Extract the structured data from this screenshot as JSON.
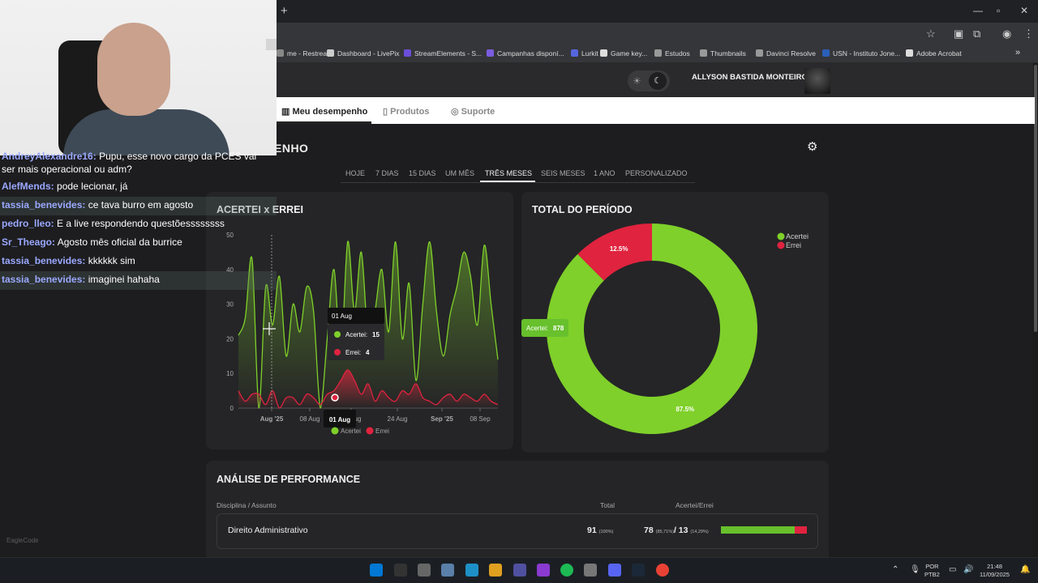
{
  "browser": {
    "new_tab": "+",
    "window_controls": [
      "—",
      "▫",
      "✕"
    ],
    "bookmarks": [
      {
        "label": "me - Restream",
        "color": "#888888"
      },
      {
        "label": "Dashboard - LivePix",
        "color": "#cccccc"
      },
      {
        "label": "StreamElements - S...",
        "color": "#6b4fd8"
      },
      {
        "label": "Campanhas disponí...",
        "color": "#7b5ce0"
      },
      {
        "label": "Lurkit",
        "color": "#5566dd"
      },
      {
        "label": "Game key...",
        "color": "#dddddd"
      },
      {
        "label": "Estudos",
        "color": "#999999"
      },
      {
        "label": "Thumbnails",
        "color": "#999999"
      },
      {
        "label": "Davinci Resolve",
        "color": "#999999"
      },
      {
        "label": "USN - Instituto Jone...",
        "color": "#2b5fb8"
      },
      {
        "label": "Adobe Acrobat",
        "color": "#dddddd"
      }
    ],
    "more_bookmarks": "»"
  },
  "header": {
    "sun_icon": "☀",
    "moon_icon": "☾",
    "username": "ALLYSON BASTIDA MONTEIRO"
  },
  "nav": {
    "items": [
      {
        "label": "Meu desempenho",
        "icon": "▥"
      },
      {
        "label": "Produtos",
        "icon": "▯"
      },
      {
        "label": "Suporte",
        "icon": "◎"
      }
    ]
  },
  "page": {
    "title": "ENHO",
    "gear_icon": "⚙",
    "filters": [
      "HOJE",
      "7 DIAS",
      "15 DIAS",
      "UM MÊS",
      "TRÊS MESES",
      "SEIS MESES",
      "1 ANO",
      "PERSONALIZADO"
    ],
    "active_filter": "TRÊS MESES"
  },
  "chat": [
    {
      "user": "AndreyAlexandre16:",
      "msg": "Pupu, esse novo cargo da PCES vai"
    },
    {
      "user": "",
      "msg": "ser mais operacional ou adm?"
    },
    {
      "user": "AlefMends:",
      "msg": "pode lecionar, já"
    },
    {
      "user": "tassia_benevides:",
      "msg": "ce tava burro em agosto"
    },
    {
      "user": "pedro_lleo:",
      "msg": "E a live respondendo questõessssssss"
    },
    {
      "user": "Sr_Theago:",
      "msg": "Agosto mês oficial da burrice"
    },
    {
      "user": "tassia_benevides:",
      "msg": "kkkkkk sim"
    },
    {
      "user": "tassia_benevides:",
      "msg": "imaginei hahaha"
    }
  ],
  "chart_data": [
    {
      "type": "area",
      "title": "ACERTEI x ERREI",
      "ylim": [
        0,
        50
      ],
      "yticks": [
        0,
        10,
        20,
        30,
        40,
        50
      ],
      "xticks": [
        "Aug '25",
        "08 Aug",
        "16 Aug",
        "24 Aug",
        "Sep '25",
        "08 Sep"
      ],
      "series": [
        {
          "name": "Acertei",
          "color": "#7fd02a",
          "values": [
            21,
            26,
            43,
            0,
            35,
            24,
            38,
            15,
            30,
            22,
            35,
            28,
            0,
            20,
            40,
            15,
            48,
            28,
            45,
            20,
            28,
            40,
            22,
            48,
            20,
            36,
            8,
            30,
            48,
            28,
            15,
            27,
            35,
            45,
            38,
            24,
            47,
            30,
            14
          ]
        },
        {
          "name": "Errei",
          "color": "#e0233f",
          "values": [
            5,
            2,
            4,
            4,
            1,
            5,
            0,
            3,
            3,
            1,
            4,
            3,
            1,
            4,
            5,
            8,
            11,
            8,
            4,
            7,
            2,
            5,
            3,
            2,
            5,
            4,
            7,
            3,
            2,
            1,
            3,
            4,
            2,
            4,
            3,
            2,
            4,
            2,
            1
          ]
        }
      ],
      "tooltip": {
        "date": "01 Aug",
        "acertei_label": "Acertei:",
        "acertei_value": "15",
        "errei_label": "Errei:",
        "errei_value": "4"
      },
      "crosshair_label": "01 Aug",
      "legend": [
        "Acertei",
        "Errei"
      ],
      "legend_position": "bottom"
    },
    {
      "type": "pie",
      "title": "TOTAL DO PERÍODO",
      "slices": [
        {
          "name": "Acertei",
          "value": 878,
          "percent": "87.5%",
          "color": "#7fd02a"
        },
        {
          "name": "Errei",
          "value": 125,
          "percent": "12.5%",
          "color": "#e0233f"
        }
      ],
      "tooltip": {
        "label": "Acertei:",
        "value": "878"
      },
      "legend_position": "top-right"
    }
  ],
  "analysis": {
    "title": "ANÁLISE DE PERFORMANCE",
    "col_subject": "Disciplina / Assunto",
    "col_total": "Total",
    "col_ae": "Acertei/Errei",
    "rows": [
      {
        "subject": "Direito Administrativo",
        "total": "91",
        "total_pct": "(100%)",
        "acertei": "78",
        "acertei_pct": "(85,71%)",
        "errei": "13",
        "errei_pct": "(14,29%)",
        "ratio": 0.857
      }
    ]
  },
  "watermark": "EagleCode",
  "taskbar": {
    "lang": "POR",
    "layout": "PTB2",
    "time": "21:48",
    "date": "11/09/2025",
    "apps": [
      "#0078d4",
      "#333",
      "#666",
      "#5a7fa8",
      "#1e90c8",
      "#e0a020",
      "#5050a0",
      "#8a3ad0",
      "#1db954",
      "#777",
      "#5865f2",
      "#1b2838",
      "#e94235"
    ]
  }
}
